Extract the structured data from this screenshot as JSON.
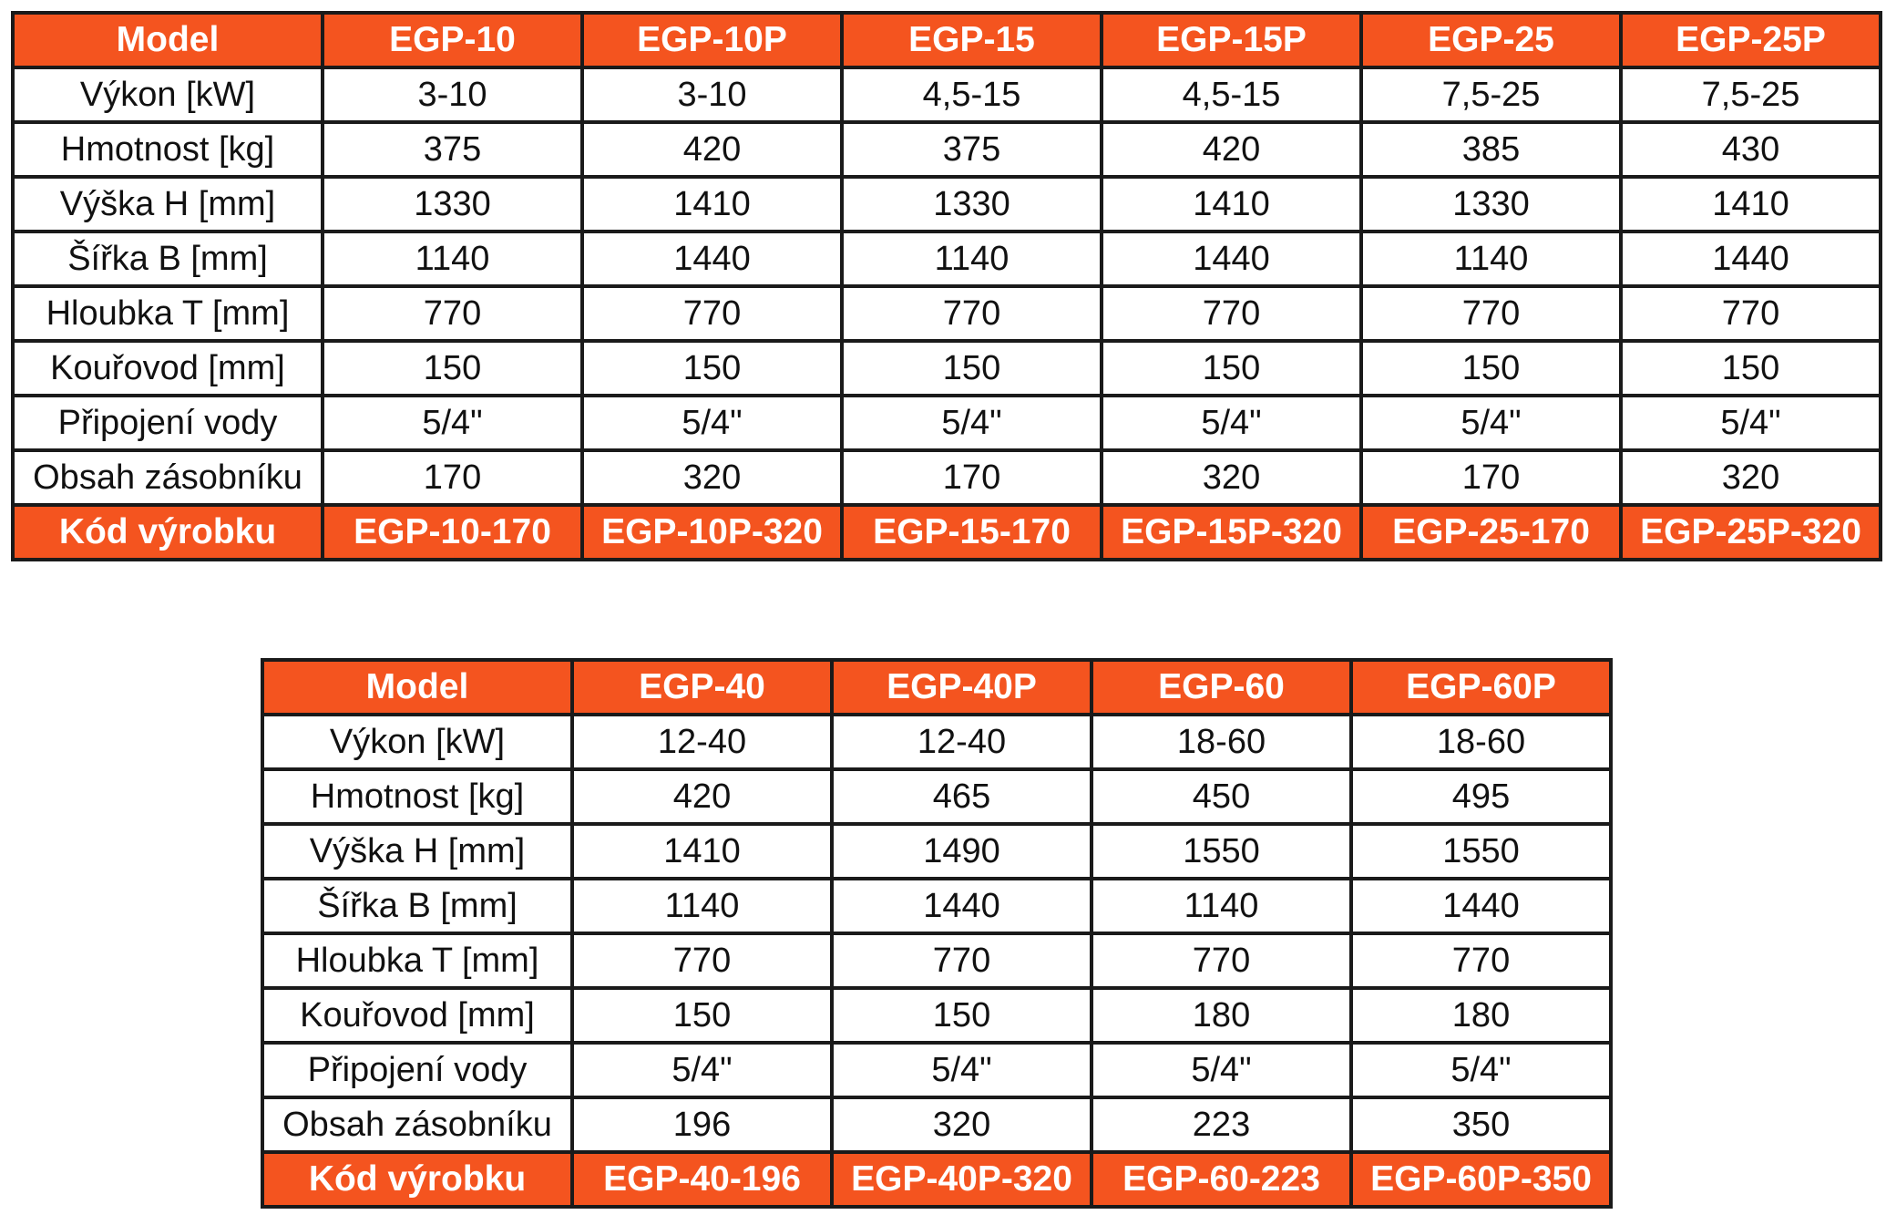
{
  "tables": [
    {
      "header": [
        "Model",
        "EGP-10",
        "EGP-10P",
        "EGP-15",
        "EGP-15P",
        "EGP-25",
        "EGP-25P"
      ],
      "rows": [
        [
          "Výkon [kW]",
          "3-10",
          "3-10",
          "4,5-15",
          "4,5-15",
          "7,5-25",
          "7,5-25"
        ],
        [
          "Hmotnost [kg]",
          "375",
          "420",
          "375",
          "420",
          "385",
          "430"
        ],
        [
          "Výška H [mm]",
          "1330",
          "1410",
          "1330",
          "1410",
          "1330",
          "1410"
        ],
        [
          "Šířka B [mm]",
          "1140",
          "1440",
          "1140",
          "1440",
          "1140",
          "1440"
        ],
        [
          "Hloubka T [mm]",
          "770",
          "770",
          "770",
          "770",
          "770",
          "770"
        ],
        [
          "Kouřovod [mm]",
          "150",
          "150",
          "150",
          "150",
          "150",
          "150"
        ],
        [
          "Připojení vody",
          "5/4\"",
          "5/4\"",
          "5/4\"",
          "5/4\"",
          "5/4\"",
          "5/4\""
        ],
        [
          "Obsah zásobníku",
          "170",
          "320",
          "170",
          "320",
          "170",
          "320"
        ]
      ],
      "footer": [
        "Kód výrobku",
        "EGP-10-170",
        "EGP-10P-320",
        "EGP-15-170",
        "EGP-15P-320",
        "EGP-25-170",
        "EGP-25P-320"
      ]
    },
    {
      "header": [
        "Model",
        "EGP-40",
        "EGP-40P",
        "EGP-60",
        "EGP-60P"
      ],
      "rows": [
        [
          "Výkon [kW]",
          "12-40",
          "12-40",
          "18-60",
          "18-60"
        ],
        [
          "Hmotnost [kg]",
          "420",
          "465",
          "450",
          "495"
        ],
        [
          "Výška H [mm]",
          "1410",
          "1490",
          "1550",
          "1550"
        ],
        [
          "Šířka B [mm]",
          "1140",
          "1440",
          "1140",
          "1440"
        ],
        [
          "Hloubka T [mm]",
          "770",
          "770",
          "770",
          "770"
        ],
        [
          "Kouřovod [mm]",
          "150",
          "150",
          "180",
          "180"
        ],
        [
          "Připojení vody",
          "5/4\"",
          "5/4\"",
          "5/4\"",
          "5/4\""
        ],
        [
          "Obsah zásobníku",
          "196",
          "320",
          "223",
          "350"
        ]
      ],
      "footer": [
        "Kód výrobku",
        "EGP-40-196",
        "EGP-40P-320",
        "EGP-60-223",
        "EGP-60P-350"
      ]
    }
  ],
  "colors": {
    "header_bg": "#f4541f",
    "header_text": "#ffffff",
    "border": "#1a1a1a"
  }
}
